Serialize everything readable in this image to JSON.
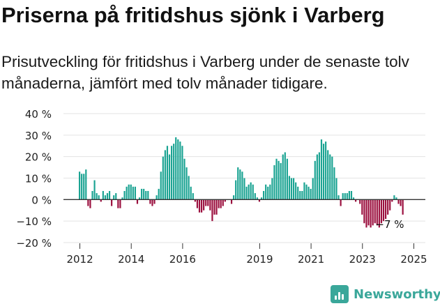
{
  "title": "Priserna på fritidshus sjönk i Varberg",
  "subtitle": "Prisutveckling för fritidshus i Varberg under de senaste tolv månaderna, jämfört med tolv månader tidigare.",
  "brand": {
    "name": "Newsworthy"
  },
  "colors": {
    "positive": "#1aa392",
    "negative": "#9b0f3e",
    "grid": "#e3e3e3",
    "axis": "#333333"
  },
  "chart_data": {
    "type": "bar",
    "x_start": "2012-01",
    "interval": "month",
    "ylabel": "",
    "ylim": [
      -20,
      40
    ],
    "yticks": [
      {
        "value": 40,
        "label": "40 %"
      },
      {
        "value": 30,
        "label": "30 %"
      },
      {
        "value": 20,
        "label": "20 %"
      },
      {
        "value": 10,
        "label": "10 %"
      },
      {
        "value": 0,
        "label": "0 %"
      },
      {
        "value": -10,
        "label": "−10 %"
      },
      {
        "value": -20,
        "label": "−20 %"
      }
    ],
    "xticks": [
      "2012",
      "2014",
      "2016",
      "2019",
      "2021",
      "2023",
      "2025"
    ],
    "grid": true,
    "annotation": "−7 %",
    "values": [
      13,
      12,
      12,
      14,
      -3,
      -4,
      4,
      9,
      3,
      2,
      -1,
      4,
      2,
      3,
      4,
      -3,
      2,
      3,
      -4,
      -4,
      1,
      4,
      6,
      7,
      7,
      6,
      6,
      -2,
      1,
      5,
      5,
      4,
      4,
      -2,
      -3,
      -2,
      2,
      5,
      13,
      20,
      23,
      25,
      21,
      25,
      26,
      29,
      28,
      27,
      25,
      19,
      15,
      11,
      6,
      3,
      -1,
      -4,
      -6,
      -6,
      -5,
      -3,
      -3,
      -5,
      -10,
      -7,
      -7,
      -4,
      -4,
      -3,
      -1,
      0,
      0,
      -2,
      2,
      9,
      15,
      14,
      13,
      10,
      6,
      7,
      8,
      7,
      3,
      1,
      -1,
      1,
      4,
      7,
      6,
      7,
      10,
      16,
      19,
      18,
      17,
      21,
      22,
      19,
      11,
      10,
      10,
      8,
      6,
      4,
      4,
      8,
      7,
      6,
      5,
      10,
      18,
      21,
      22,
      28,
      26,
      27,
      23,
      21,
      20,
      15,
      10,
      2,
      -3,
      3,
      3,
      3,
      4,
      4,
      1,
      -1,
      0,
      -2,
      -7,
      -11,
      -13,
      -12,
      -13,
      -12,
      -11,
      -12,
      -13,
      -11,
      -10,
      -9,
      -7,
      -5,
      -1,
      2,
      1,
      -2,
      -3,
      -7
    ]
  }
}
